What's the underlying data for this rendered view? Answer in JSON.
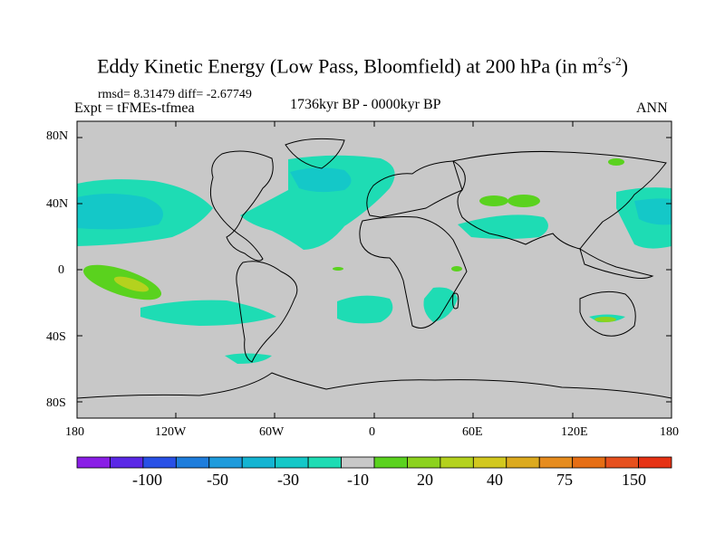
{
  "title": {
    "main": "Eddy Kinetic Energy (Low Pass, Bloomfield) at 200 hPa (in m",
    "sup1": "2",
    "mid": "s",
    "sup2": "-2",
    "end": ")"
  },
  "stats_line": "rmsd= 8.31479 diff= -2.67749",
  "expt_line": "Expt = tFMEs-tfmea",
  "period_line": "1736kyr BP - 0000kyr BP",
  "season": "ANN",
  "lat_labels": [
    "80N",
    "40N",
    "0",
    "40S",
    "80S"
  ],
  "lon_labels": [
    "180",
    "120W",
    "60W",
    "0",
    "60E",
    "120E",
    "180"
  ],
  "colorbar": {
    "colors": [
      "#8a1ee6",
      "#5a28e6",
      "#2850e6",
      "#1e7ddc",
      "#1e9bdc",
      "#14b4d2",
      "#14c8c8",
      "#1edcb4",
      "#c8c8c8",
      "#5ad21e",
      "#8cd21e",
      "#b4d21e",
      "#d2c81e",
      "#dcaa1e",
      "#e68c1e",
      "#e66e14",
      "#e6501e",
      "#e63214"
    ],
    "labels": [
      "-100",
      "-50",
      "-30",
      "-10",
      "20",
      "40",
      "75",
      "150"
    ]
  },
  "map": {
    "land_color": "#c8c8c8",
    "line_color": "#000000"
  }
}
